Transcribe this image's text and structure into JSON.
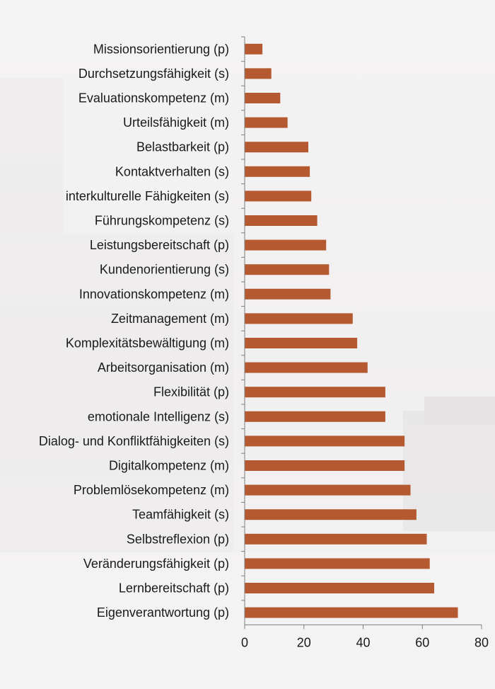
{
  "chart_data": {
    "type": "bar",
    "orientation": "horizontal",
    "categories": [
      "Missionsorientierung (p)",
      "Durchsetzungsfähigkeit (s)",
      "Evaluationskompetenz (m)",
      "Urteilsfähigkeit (m)",
      "Belastbarkeit (p)",
      "Kontaktverhalten (s)",
      "interkulturelle Fähigkeiten (s)",
      "Führungskompetenz (s)",
      "Leistungsbereitschaft (p)",
      "Kundenorientierung (s)",
      "Innovationskompetenz (m)",
      "Zeitmanagement (m)",
      "Komplexitätsbewältigung (m)",
      "Arbeitsorganisation (m)",
      "Flexibilität (p)",
      "emotionale Intelligenz (s)",
      "Dialog- und Konfliktfähigkeiten (s)",
      "Digitalkompetenz (m)",
      "Problemlösekompetenz (m)",
      "Teamfähigkeit (s)",
      "Selbstreflexion (p)",
      "Veränderungsfähigkeit (p)",
      "Lernbereitschaft (p)",
      "Eigenverantwortung (p)"
    ],
    "values": [
      6,
      9,
      12,
      14.5,
      21.5,
      22,
      22.5,
      24.5,
      27.5,
      28.5,
      29,
      36.5,
      38,
      41.5,
      47.5,
      47.5,
      54,
      54,
      56,
      58,
      61.5,
      62.5,
      64,
      72
    ],
    "xlim": [
      0,
      80
    ],
    "xticks": [
      0,
      20,
      40,
      60,
      80
    ],
    "bar_color": "#b55a30",
    "axis_color": "#7f7f7f",
    "grid": false,
    "title": "",
    "xlabel": "",
    "ylabel": ""
  }
}
